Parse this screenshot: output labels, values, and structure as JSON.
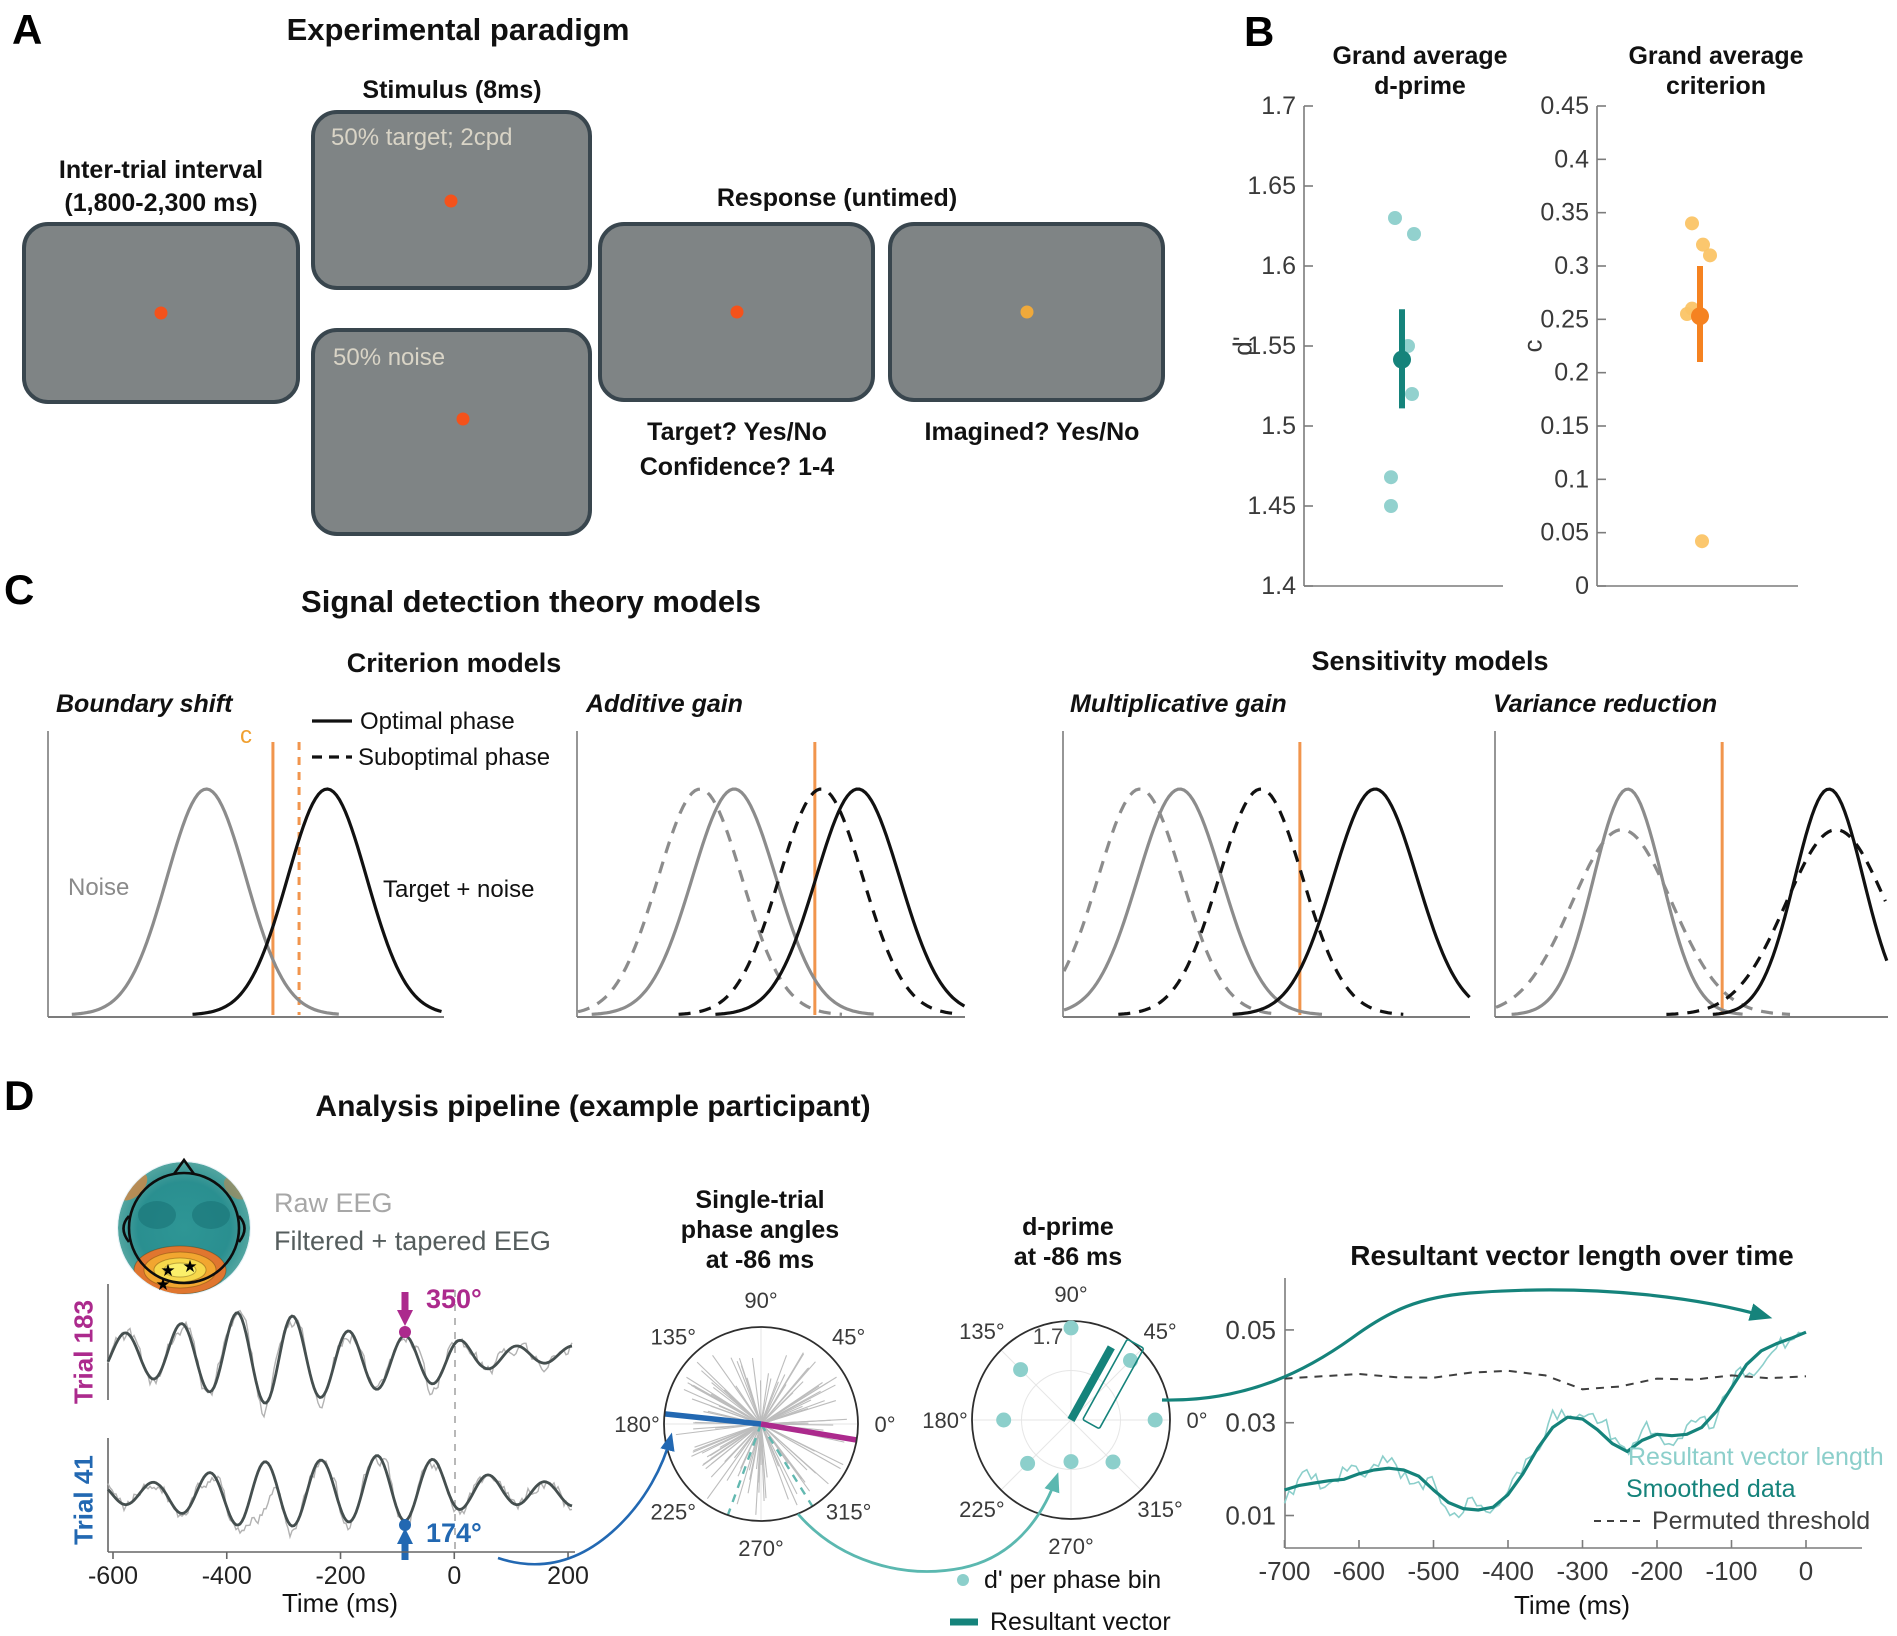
{
  "panel_a": {
    "label": "A",
    "title": "Experimental paradigm",
    "stimulus_label": "Stimulus (8ms)",
    "iti_line1": "Inter-trial interval",
    "iti_line2": "(1,800-2,300 ms)",
    "target_screen_text": "50% target; 2cpd",
    "noise_screen_text": "50% noise",
    "response_label": "Response (untimed)",
    "response1_line1": "Target? Yes/No",
    "response1_line2": "Confidence? 1-4",
    "response2_line": "Imagined? Yes/No"
  },
  "panel_b": {
    "label": "B",
    "dprime": {
      "title1": "Grand average",
      "title2": "d-prime",
      "ylabel": "d'"
    },
    "criterion": {
      "title1": "Grand average",
      "title2": "criterion",
      "ylabel": "c"
    }
  },
  "panel_c": {
    "label": "C",
    "title": "Signal detection theory models",
    "criterion_title": "Criterion models",
    "sensitivity_title": "Sensitivity models",
    "legend": {
      "optimal": "Optimal phase",
      "suboptimal": "Suboptimal phase"
    },
    "noise_label": "Noise",
    "target_label": "Target + noise",
    "c_label": "c",
    "models": [
      {
        "name": "Boundary shift"
      },
      {
        "name": "Additive gain"
      },
      {
        "name": "Multiplicative gain"
      },
      {
        "name": "Variance reduction"
      }
    ]
  },
  "panel_d": {
    "label": "D",
    "title": "Analysis pipeline (example participant)",
    "raw_label": "Raw EEG",
    "filtered_label": "Filtered + tapered EEG",
    "trials": [
      {
        "label": "Trial 183",
        "angle": "350°",
        "color": "#ac2a8d"
      },
      {
        "label": "Trial 41",
        "angle": "174°",
        "color": "#2268b2"
      }
    ],
    "time_label": "Time (ms)",
    "polar1": {
      "title1": "Single-trial",
      "title2": "phase angles",
      "title3": "at -86 ms"
    },
    "polar2": {
      "title1": "d-prime",
      "title2": "at -86 ms",
      "radial_label": "1.7"
    },
    "legend": {
      "dprime_bin": "d' per phase bin",
      "resultant": "Resultant vector"
    },
    "rvl": {
      "title": "Resultant vector length over time",
      "xlabel": "Time (ms)",
      "legend": {
        "raw": "Resultant vector length",
        "smoothed": "Smoothed data",
        "threshold": "Permuted threshold"
      }
    }
  },
  "colors": {
    "teal_dark": "#15837b",
    "teal_light": "#8ccfcb",
    "teal_mid": "#5bb8b0",
    "orange_dark": "#f58220",
    "orange_light": "#fbc466",
    "orange_line": "#f1954d",
    "magenta": "#ac2a8d",
    "blue": "#2268b2",
    "screen_gray": "#7f8485",
    "screen_border": "#39464e",
    "fix_orange": "#f4521b",
    "fix_yellow": "#efa93b",
    "eeg_raw": "#b2b2b2",
    "eeg_filtered": "#454f4f",
    "axis_gray": "#7c7c7c",
    "gauss_gray": "#8c8c8c"
  },
  "chart_data": [
    {
      "id": "grand_average_dprime",
      "type": "scatter",
      "title": "Grand average d-prime",
      "ylabel": "d'",
      "ylim": [
        1.4,
        1.7
      ],
      "yticks": [
        1.7,
        1.65,
        1.6,
        1.55,
        1.5,
        1.45,
        1.4
      ],
      "points": [
        1.63,
        1.62,
        1.55,
        1.52,
        1.468,
        1.45
      ],
      "mean": 1.5415,
      "ci": [
        1.511,
        1.573
      ]
    },
    {
      "id": "grand_average_criterion",
      "type": "scatter",
      "title": "Grand average criterion",
      "ylabel": "c",
      "ylim": [
        0,
        0.45
      ],
      "yticks": [
        0.45,
        0.4,
        0.35,
        0.3,
        0.25,
        0.2,
        0.15,
        0.1,
        0.05,
        0
      ],
      "points": [
        0.34,
        0.32,
        0.31,
        0.26,
        0.255,
        0.042
      ],
      "mean": 0.253,
      "ci": [
        0.21,
        0.3
      ]
    },
    {
      "id": "sdt_models",
      "type": "line",
      "note": "Gaussian noise / target+noise distributions, positions in 0-10 panel units",
      "models": [
        {
          "name": "Boundary shift",
          "curves": [
            {
              "dist": "noise",
              "phase": "optimal",
              "mean": 4.0,
              "sd": 1.0,
              "h": 1.0
            },
            {
              "dist": "target",
              "phase": "optimal",
              "mean": 7.05,
              "sd": 1.0,
              "h": 1.0
            }
          ],
          "criterion_lines": [
            {
              "phase": "optimal",
              "x": 5.68
            },
            {
              "phase": "suboptimal",
              "x": 6.34
            }
          ]
        },
        {
          "name": "Additive gain",
          "curves": [
            {
              "dist": "noise",
              "phase": "suboptimal",
              "mean": 3.17,
              "sd": 1.08,
              "h": 1.0
            },
            {
              "dist": "noise",
              "phase": "optimal",
              "mean": 4.05,
              "sd": 1.08,
              "h": 1.0
            },
            {
              "dist": "target",
              "phase": "suboptimal",
              "mean": 6.29,
              "sd": 1.08,
              "h": 1.0
            },
            {
              "dist": "target",
              "phase": "optimal",
              "mean": 7.24,
              "sd": 1.08,
              "h": 1.0
            }
          ],
          "criterion_lines": [
            {
              "phase": "optimal",
              "x": 6.13
            }
          ]
        },
        {
          "name": "Multiplicative gain",
          "curves": [
            {
              "dist": "noise",
              "phase": "suboptimal",
              "mean": 1.89,
              "sd": 1.03,
              "h": 1.0
            },
            {
              "dist": "noise",
              "phase": "optimal",
              "mean": 2.87,
              "sd": 1.03,
              "h": 1.0
            },
            {
              "dist": "target",
              "phase": "suboptimal",
              "mean": 4.86,
              "sd": 1.03,
              "h": 1.0
            },
            {
              "dist": "target",
              "phase": "optimal",
              "mean": 7.67,
              "sd": 1.03,
              "h": 1.0
            }
          ],
          "criterion_lines": [
            {
              "phase": "optimal",
              "x": 5.82
            }
          ]
        },
        {
          "name": "Variance reduction",
          "curves": [
            {
              "dist": "noise",
              "phase": "suboptimal",
              "mean": 3.23,
              "sd": 1.27,
              "h": 0.82
            },
            {
              "dist": "noise",
              "phase": "optimal",
              "mean": 3.38,
              "sd": 0.87,
              "h": 1.0
            },
            {
              "dist": "target",
              "phase": "suboptimal",
              "mean": 8.68,
              "sd": 1.27,
              "h": 0.82
            },
            {
              "dist": "target",
              "phase": "optimal",
              "mean": 8.5,
              "sd": 0.87,
              "h": 1.0
            }
          ],
          "criterion_lines": [
            {
              "phase": "optimal",
              "x": 5.78
            }
          ]
        }
      ]
    },
    {
      "id": "phase_angle_polar",
      "type": "polar",
      "title": "Single-trial phase angles at -86 ms",
      "angle_labels": [
        "0°",
        "45°",
        "90°",
        "135°",
        "180°",
        "225°",
        "270°",
        "315°"
      ],
      "gray_line_count": 115,
      "highlighted": [
        {
          "trial": 183,
          "angle_deg": 350.5
        },
        {
          "trial": 41,
          "angle_deg": 174
        }
      ],
      "dashed_bin_angles": [
        250,
        302
      ]
    },
    {
      "id": "dprime_polar",
      "type": "polar",
      "title": "d-prime at -86 ms",
      "radial_tick": 1.7,
      "angle_labels": [
        "0°",
        "45°",
        "90°",
        "135°",
        "180°",
        "225°",
        "270°",
        "315°"
      ],
      "bins": [
        {
          "angle_deg": 0,
          "r": 0.85
        },
        {
          "angle_deg": 45,
          "r": 0.85
        },
        {
          "angle_deg": 90,
          "r": 0.93
        },
        {
          "angle_deg": 135,
          "r": 0.72
        },
        {
          "angle_deg": 180,
          "r": 0.68
        },
        {
          "angle_deg": 225,
          "r": 0.62
        },
        {
          "angle_deg": 270,
          "r": 0.42
        },
        {
          "angle_deg": 315,
          "r": 0.6
        }
      ],
      "resultant": {
        "angle_deg": 61,
        "r": 0.84
      }
    },
    {
      "id": "resultant_vector_length",
      "type": "line",
      "title": "Resultant vector length over time",
      "xlabel": "Time (ms)",
      "xticks": [
        -700,
        -600,
        -500,
        -400,
        -300,
        -200,
        -100,
        0
      ],
      "yticks": [
        0.01,
        0.03,
        0.05
      ],
      "ylim": [
        0.003,
        0.061
      ],
      "series": [
        {
          "name": "Smoothed data",
          "points": [
            [
              -700,
              0.0155
            ],
            [
              -680,
              0.0165
            ],
            [
              -660,
              0.017
            ],
            [
              -640,
              0.0175
            ],
            [
              -620,
              0.0178
            ],
            [
              -600,
              0.019
            ],
            [
              -580,
              0.0198
            ],
            [
              -560,
              0.0202
            ],
            [
              -540,
              0.0198
            ],
            [
              -520,
              0.0185
            ],
            [
              -500,
              0.0155
            ],
            [
              -480,
              0.0128
            ],
            [
              -460,
              0.0115
            ],
            [
              -440,
              0.0112
            ],
            [
              -420,
              0.0118
            ],
            [
              -400,
              0.0145
            ],
            [
              -380,
              0.019
            ],
            [
              -360,
              0.0245
            ],
            [
              -340,
              0.029
            ],
            [
              -320,
              0.0312
            ],
            [
              -300,
              0.0308
            ],
            [
              -280,
              0.0285
            ],
            [
              -260,
              0.0255
            ],
            [
              -240,
              0.0238
            ],
            [
              -220,
              0.0262
            ],
            [
              -200,
              0.0275
            ],
            [
              -180,
              0.0272
            ],
            [
              -160,
              0.0275
            ],
            [
              -140,
              0.029
            ],
            [
              -120,
              0.0325
            ],
            [
              -100,
              0.0375
            ],
            [
              -80,
              0.0425
            ],
            [
              -60,
              0.0455
            ],
            [
              -40,
              0.047
            ],
            [
              -20,
              0.0482
            ],
            [
              0,
              0.0495
            ]
          ]
        },
        {
          "name": "Permuted threshold",
          "points": [
            [
              -700,
              0.0395
            ],
            [
              -650,
              0.04
            ],
            [
              -600,
              0.0405
            ],
            [
              -550,
              0.0398
            ],
            [
              -500,
              0.0397
            ],
            [
              -450,
              0.0408
            ],
            [
              -400,
              0.0412
            ],
            [
              -350,
              0.0402
            ],
            [
              -300,
              0.0372
            ],
            [
              -250,
              0.0378
            ],
            [
              -200,
              0.0395
            ],
            [
              -150,
              0.0393
            ],
            [
              -100,
              0.0402
            ],
            [
              -50,
              0.0396
            ],
            [
              0,
              0.04
            ]
          ]
        }
      ],
      "raw_series": {
        "name": "Resultant vector length",
        "derived_from": "Smoothed data",
        "jitter": 0.003,
        "seed": 9
      }
    },
    {
      "id": "example_eeg_trials",
      "type": "line",
      "xlabel": "Time (ms)",
      "xticks": [
        -600,
        -400,
        -200,
        0,
        200
      ],
      "trials": [
        {
          "label": "Trial 183",
          "marked_angle_deg": 350,
          "marker_time_ms": -86,
          "seed": 183,
          "envelope": [
            [
              0,
              20
            ],
            [
              40,
              24
            ],
            [
              90,
              34
            ],
            [
              130,
              44
            ],
            [
              175,
              46
            ],
            [
              215,
              36
            ],
            [
              255,
              28
            ],
            [
              297,
              26
            ],
            [
              341,
              22
            ],
            [
              375,
              12
            ],
            [
              420,
              9
            ],
            [
              464,
              8
            ]
          ],
          "phase": -0.333
        },
        {
          "label": "Trial 41",
          "marked_angle_deg": 174,
          "marker_time_ms": -86,
          "seed": 41,
          "envelope": [
            [
              0,
              10
            ],
            [
              50,
              13
            ],
            [
              95,
              22
            ],
            [
              135,
              31
            ],
            [
              175,
              34
            ],
            [
              215,
              31
            ],
            [
              255,
              33
            ],
            [
              297,
              33
            ],
            [
              330,
              28
            ],
            [
              360,
              18
            ],
            [
              400,
              13
            ],
            [
              464,
              11
            ]
          ],
          "phase": 2.808
        }
      ]
    }
  ]
}
